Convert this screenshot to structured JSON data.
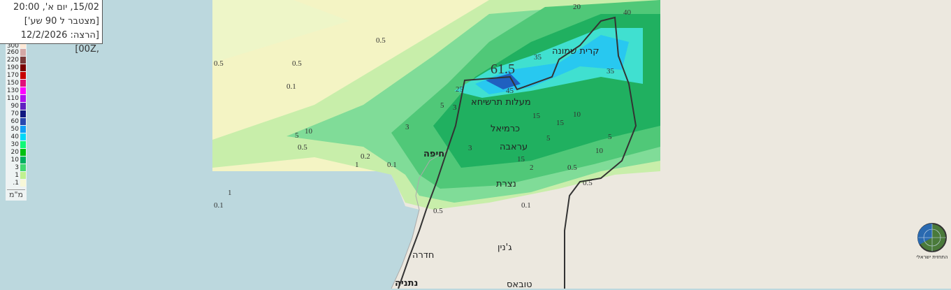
{
  "info": {
    "valid_time": "15/02, יום א', 20:00",
    "accumulation": "[מצטבר ל 90 שע']",
    "run": "[הרצה: 12/2/2026 ,00Z]"
  },
  "legend": {
    "unit": "מ\"מ",
    "items": [
      {
        "v": "300",
        "c": "#fde8d6"
      },
      {
        "v": "260",
        "c": "#d4a8a6"
      },
      {
        "v": "220",
        "c": "#7a3a3a"
      },
      {
        "v": "190",
        "c": "#7a0000"
      },
      {
        "v": "170",
        "c": "#c80000"
      },
      {
        "v": "150",
        "c": "#e0107a"
      },
      {
        "v": "130",
        "c": "#ff00ff"
      },
      {
        "v": "110",
        "c": "#b010f0"
      },
      {
        "v": "90",
        "c": "#6020c0"
      },
      {
        "v": "70",
        "c": "#101880"
      },
      {
        "v": "60",
        "c": "#2848b0"
      },
      {
        "v": "50",
        "c": "#10a0f8"
      },
      {
        "v": "40",
        "c": "#00d8f8"
      },
      {
        "v": "30",
        "c": "#10f878"
      },
      {
        "v": "20",
        "c": "#00c010"
      },
      {
        "v": "10",
        "c": "#00b060"
      },
      {
        "v": "3",
        "c": "#40d870"
      },
      {
        "v": "1",
        "c": "#c0f090"
      },
      {
        "v": ".1",
        "c": "#f8f8d8"
      }
    ]
  },
  "cities": [
    {
      "name": "קרית שמונה",
      "bold": false
    },
    {
      "name": "מעלות תרשיחא",
      "bold": false
    },
    {
      "name": "כרמיאל",
      "bold": false
    },
    {
      "name": "עראבה",
      "bold": false
    },
    {
      "name": "חיפה",
      "bold": true
    },
    {
      "name": "נצרת",
      "bold": false
    },
    {
      "name": "ג'נין",
      "bold": false
    },
    {
      "name": "חדרה",
      "bold": false
    },
    {
      "name": "נתניה",
      "bold": true
    },
    {
      "name": "טובאס",
      "bold": false
    }
  ],
  "max_value": "61.5",
  "contours": [
    "20",
    "40",
    "35",
    "35",
    "0.5",
    "0.5",
    "0.5",
    "0.1",
    "45",
    "25",
    "5",
    "3",
    "10",
    "15",
    "15",
    "10",
    "5",
    "10",
    "15",
    "5",
    "3",
    "1",
    "0.5",
    "5",
    "0.2",
    "0.1",
    "3",
    "0.5",
    "0.1",
    "0.5",
    "2",
    "0.5",
    "0.1",
    "1"
  ],
  "logo_text": "התחזית ישראלי"
}
